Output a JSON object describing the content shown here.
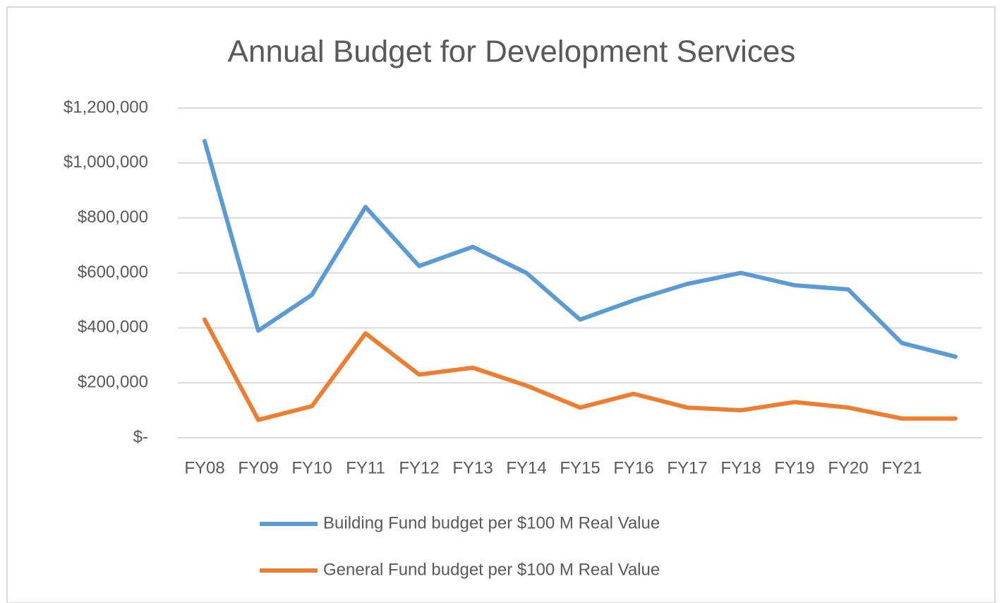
{
  "chart_data": {
    "type": "line",
    "title": "Annual Budget for Development Services",
    "categories": [
      "FY08",
      "FY09",
      "FY10",
      "FY11",
      "FY12",
      "FY13",
      "FY14",
      "FY15",
      "FY16",
      "FY17",
      "FY18",
      "FY19",
      "FY20",
      "FY21",
      null
    ],
    "series": [
      {
        "name": "Building Fund budget per $100 M Real Value",
        "color": "#5b9bd5",
        "values": [
          1080000,
          390000,
          520000,
          840000,
          625000,
          695000,
          600000,
          430000,
          500000,
          560000,
          600000,
          555000,
          540000,
          345000,
          295000
        ]
      },
      {
        "name": "General Fund budget per $100 M Real Value",
        "color": "#ed7d31",
        "values": [
          430000,
          65000,
          115000,
          380000,
          230000,
          255000,
          190000,
          110000,
          160000,
          110000,
          100000,
          130000,
          110000,
          70000,
          70000
        ]
      }
    ],
    "ylim": [
      0,
      1200000
    ],
    "yticks": [
      {
        "value": 0,
        "label": "$-"
      },
      {
        "value": 200000,
        "label": "$200,000"
      },
      {
        "value": 400000,
        "label": "$400,000"
      },
      {
        "value": 600000,
        "label": "$600,000"
      },
      {
        "value": 800000,
        "label": "$800,000"
      },
      {
        "value": 1000000,
        "label": "$1,000,000"
      },
      {
        "value": 1200000,
        "label": "$1,200,000"
      }
    ],
    "grid": true,
    "legend": "bottom"
  }
}
